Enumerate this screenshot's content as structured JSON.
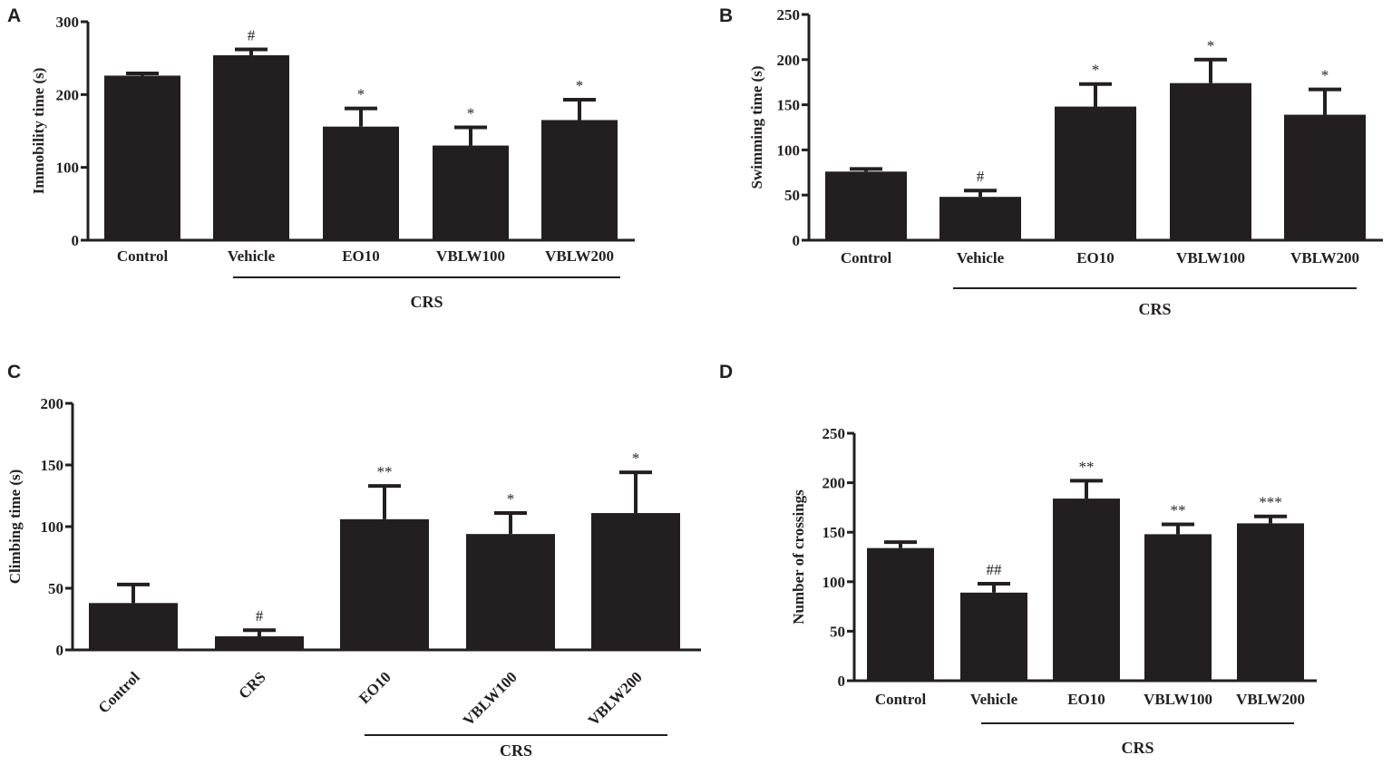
{
  "colors": {
    "bar": "#231f20",
    "axis": "#231f20",
    "background": "#ffffff"
  },
  "chart_data": [
    {
      "panel": "A",
      "type": "bar",
      "title": "",
      "xlabel": "",
      "ylabel": "Immobility time (s)",
      "ylim": [
        0,
        300
      ],
      "yticks": [
        0,
        100,
        200,
        300
      ],
      "categories": [
        "Control",
        "Vehicle",
        "EO10",
        "VBLW100",
        "VBLW200"
      ],
      "values": [
        226,
        254,
        156,
        130,
        165
      ],
      "errors": [
        3,
        8,
        25,
        25,
        28
      ],
      "annotations": [
        "",
        "#",
        "*",
        "*",
        "*"
      ],
      "group_label": "CRS",
      "group_range": [
        1,
        4
      ]
    },
    {
      "panel": "B",
      "type": "bar",
      "title": "",
      "xlabel": "",
      "ylabel": "Swimming time (s)",
      "ylim": [
        0,
        250
      ],
      "yticks": [
        0,
        50,
        100,
        150,
        200,
        250
      ],
      "categories": [
        "Control",
        "Vehicle",
        "EO10",
        "VBLW100",
        "VBLW200"
      ],
      "values": [
        76,
        48,
        148,
        174,
        139
      ],
      "errors": [
        3,
        7,
        25,
        26,
        28
      ],
      "annotations": [
        "",
        "#",
        "*",
        "*",
        "*"
      ],
      "group_label": "CRS",
      "group_range": [
        1,
        4
      ]
    },
    {
      "panel": "C",
      "type": "bar",
      "title": "",
      "xlabel": "",
      "ylabel": "Climbing time (s)",
      "ylim": [
        0,
        200
      ],
      "yticks": [
        0,
        50,
        100,
        150,
        200
      ],
      "categories": [
        "Control",
        "CRS",
        "EO10",
        "VBLW100",
        "VBLW200"
      ],
      "values": [
        38,
        11,
        106,
        94,
        111
      ],
      "errors": [
        15,
        5,
        27,
        17,
        33
      ],
      "annotations": [
        "",
        "#",
        "**",
        "*",
        "*"
      ],
      "group_label": "CRS",
      "group_range": [
        2,
        4
      ]
    },
    {
      "panel": "D",
      "type": "bar",
      "title": "",
      "xlabel": "",
      "ylabel": "Number of crossings",
      "ylim": [
        0,
        250
      ],
      "yticks": [
        0,
        50,
        100,
        150,
        200,
        250
      ],
      "categories": [
        "Control",
        "Vehicle",
        "EO10",
        "VBLW100",
        "VBLW200"
      ],
      "values": [
        134,
        89,
        184,
        148,
        159
      ],
      "errors": [
        6,
        9,
        18,
        10,
        7
      ],
      "annotations": [
        "",
        "##",
        "**",
        "**",
        "***"
      ],
      "group_label": "CRS",
      "group_range": [
        1,
        4
      ]
    }
  ]
}
